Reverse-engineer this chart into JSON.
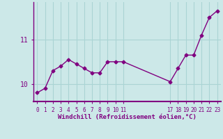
{
  "x": [
    0,
    1,
    2,
    3,
    4,
    5,
    6,
    7,
    8,
    9,
    10,
    11,
    17,
    18,
    19,
    20,
    21,
    22,
    23
  ],
  "y": [
    9.8,
    9.9,
    10.3,
    10.4,
    10.55,
    10.45,
    10.35,
    10.25,
    10.25,
    10.5,
    10.5,
    10.5,
    10.05,
    10.35,
    10.65,
    10.65,
    11.1,
    11.5,
    11.65
  ],
  "line_color": "#800080",
  "marker": "D",
  "bg_color": "#cce8e8",
  "grid_color": "#aad4d4",
  "xlabel": "Windchill (Refroidissement éolien,°C)",
  "yticks": [
    10,
    11
  ],
  "xticks": [
    0,
    1,
    2,
    3,
    4,
    5,
    6,
    7,
    8,
    9,
    10,
    11,
    17,
    18,
    19,
    20,
    21,
    22,
    23
  ],
  "xlim": [
    -0.5,
    23.5
  ],
  "ylim": [
    9.6,
    11.85
  ]
}
